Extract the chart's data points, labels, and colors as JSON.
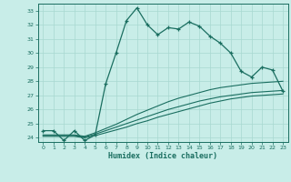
{
  "title": "",
  "xlabel": "Humidex (Indice chaleur)",
  "bg_color": "#c8ede8",
  "grid_color": "#a8d8d0",
  "line_color": "#1a6e60",
  "xlim": [
    -0.5,
    23.5
  ],
  "ylim": [
    23.7,
    33.5
  ],
  "xticks": [
    0,
    1,
    2,
    3,
    4,
    5,
    6,
    7,
    8,
    9,
    10,
    11,
    12,
    13,
    14,
    15,
    16,
    17,
    18,
    19,
    20,
    21,
    22,
    23
  ],
  "yticks": [
    24,
    25,
    26,
    27,
    28,
    29,
    30,
    31,
    32,
    33
  ],
  "line1_x": [
    0,
    1,
    2,
    3,
    4,
    5,
    6,
    7,
    8,
    9,
    10,
    11,
    12,
    13,
    14,
    15,
    16,
    17,
    18,
    19,
    20,
    21,
    22,
    23
  ],
  "line1_y": [
    24.5,
    24.5,
    23.8,
    24.5,
    23.8,
    24.2,
    27.8,
    30.0,
    32.3,
    33.2,
    32.0,
    31.3,
    31.8,
    31.7,
    32.2,
    31.9,
    31.2,
    30.7,
    30.0,
    28.7,
    28.3,
    29.0,
    28.8,
    27.3
  ],
  "line2_x": [
    0,
    1,
    2,
    3,
    4,
    5,
    6,
    7,
    8,
    9,
    10,
    11,
    12,
    13,
    14,
    15,
    16,
    17,
    18,
    19,
    20,
    21,
    22,
    23
  ],
  "line2_y": [
    24.1,
    24.1,
    24.1,
    24.1,
    24.0,
    24.15,
    24.35,
    24.55,
    24.75,
    25.0,
    25.2,
    25.45,
    25.65,
    25.85,
    26.05,
    26.25,
    26.45,
    26.6,
    26.75,
    26.85,
    26.95,
    27.0,
    27.05,
    27.1
  ],
  "line3_x": [
    0,
    1,
    2,
    3,
    4,
    5,
    6,
    7,
    8,
    9,
    10,
    11,
    12,
    13,
    14,
    15,
    16,
    17,
    18,
    19,
    20,
    21,
    22,
    23
  ],
  "line3_y": [
    24.15,
    24.15,
    24.15,
    24.15,
    24.05,
    24.25,
    24.5,
    24.75,
    25.0,
    25.25,
    25.5,
    25.75,
    26.0,
    26.2,
    26.4,
    26.6,
    26.75,
    26.9,
    27.0,
    27.1,
    27.2,
    27.25,
    27.3,
    27.35
  ],
  "line4_x": [
    0,
    1,
    2,
    3,
    4,
    5,
    6,
    7,
    8,
    9,
    10,
    11,
    12,
    13,
    14,
    15,
    16,
    17,
    18,
    19,
    20,
    21,
    22,
    23
  ],
  "line4_y": [
    24.2,
    24.2,
    24.2,
    24.2,
    24.1,
    24.35,
    24.65,
    24.95,
    25.3,
    25.65,
    25.95,
    26.25,
    26.55,
    26.8,
    27.0,
    27.2,
    27.4,
    27.55,
    27.65,
    27.75,
    27.85,
    27.9,
    27.95,
    28.0
  ]
}
